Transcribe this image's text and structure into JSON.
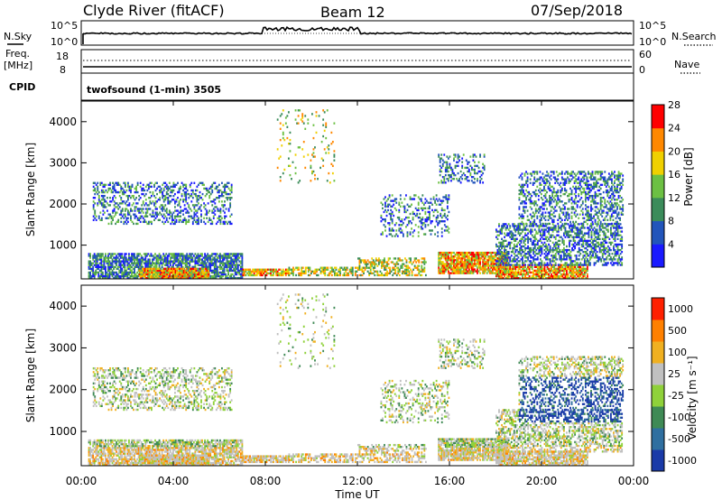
{
  "header": {
    "station": "Clyde River (fitACF)",
    "beam": "Beam 12",
    "date": "07/Sep/2018"
  },
  "nsky_panel": {
    "left_label": "N.Sky",
    "left_tick_top": "10^5",
    "left_tick_bottom": "10^0",
    "right_tick_top": "10^5",
    "right_tick_bottom": "10^0",
    "right_label": "N.Search"
  },
  "freq_panel": {
    "left_label_1": "Freq.",
    "left_label_2": "[MHz]",
    "left_tick_top": "18",
    "left_tick_bottom": "8",
    "right_tick_top": "60",
    "right_tick_bottom": "0",
    "right_label": "Nave"
  },
  "cpid_panel": {
    "label": "CPID",
    "value": "twofsound (1-min) 3505"
  },
  "chart_data": [
    {
      "type": "heatmap",
      "name": "power",
      "ylabel": "Slant Range [km]",
      "ylim": [
        180,
        4500
      ],
      "yticks": [
        1000,
        2000,
        3000,
        4000
      ],
      "xlim_hours": [
        0,
        24
      ],
      "colorbar": {
        "label": "Power [dB]",
        "ticks": [
          "4",
          "8",
          "12",
          "16",
          "20",
          "24",
          "28"
        ],
        "colors": [
          "#1a1aff",
          "#2255bb",
          "#3b8c5a",
          "#6cc043",
          "#f0d000",
          "#ff8800",
          "#ff0000"
        ]
      }
    },
    {
      "type": "heatmap",
      "name": "velocity",
      "ylabel": "Slant Range [km]",
      "ylim": [
        180,
        4500
      ],
      "yticks": [
        1000,
        2000,
        3000,
        4000
      ],
      "xlim_hours": [
        0,
        24
      ],
      "xticks": [
        "00:00",
        "04:00",
        "08:00",
        "12:00",
        "16:00",
        "20:00",
        "00:00"
      ],
      "xlabel": "Time UT",
      "colorbar": {
        "label": "Velocity [m s⁻¹]",
        "ticks": [
          "1000",
          "500",
          "100",
          "25",
          "-25",
          "-100",
          "-500",
          "-1000"
        ],
        "colors": [
          "#1a3aa8",
          "#2f6fa0",
          "#3f8a55",
          "#8fd13a",
          "#c0c0c0",
          "#f0b020",
          "#ff8000",
          "#ff2000"
        ]
      }
    }
  ]
}
